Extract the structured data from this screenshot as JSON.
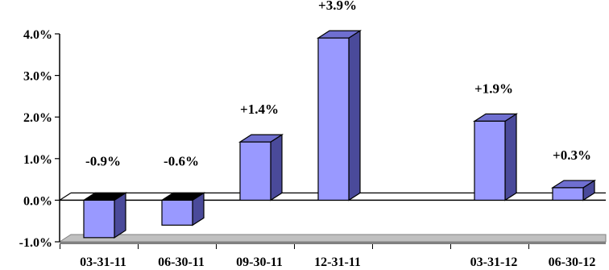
{
  "chart_data": {
    "type": "bar",
    "categories": [
      "03-31-11",
      "06-30-11",
      "09-30-11",
      "12-31-11",
      "",
      "03-31-12",
      "06-30-12"
    ],
    "values": [
      -0.9,
      -0.6,
      1.4,
      3.9,
      null,
      1.9,
      0.3
    ],
    "data_labels": [
      "-0.9%",
      "-0.6%",
      "+1.4%",
      "+3.9%",
      "",
      "+1.9%",
      "+0.3%"
    ],
    "y_ticks": [
      4.0,
      3.0,
      2.0,
      1.0,
      0.0,
      -1.0
    ],
    "y_tick_labels": [
      "4.0%",
      "3.0%",
      "2.0%",
      "1.0%",
      "0.0%",
      "-1.0%"
    ],
    "ylim": [
      -1.0,
      4.0
    ],
    "grid": false,
    "three_d": true,
    "colors": {
      "bar_front": "#9999ff",
      "bar_top": "#6f6fd0",
      "bar_side": "#4a4a9a",
      "floor": "#c0c0c0",
      "floor_side": "#808080",
      "stroke": "#000000"
    }
  }
}
